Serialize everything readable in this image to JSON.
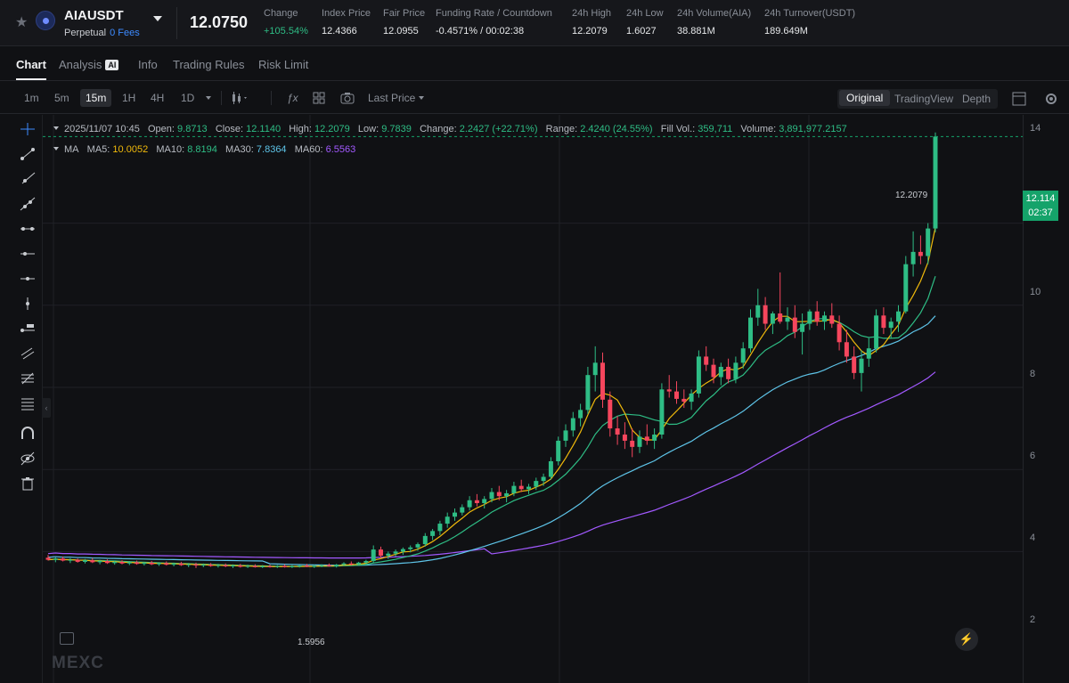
{
  "header": {
    "symbol": "AIAUSDT",
    "contract_type": "Perpetual",
    "fees": "0 Fees",
    "last_price": "12.0750",
    "stats": [
      {
        "label": "Change",
        "value": "+105.54%",
        "positive": true
      },
      {
        "label": "Index Price",
        "value": "12.4366"
      },
      {
        "label": "Fair Price",
        "value": "12.0955"
      },
      {
        "label": "Funding Rate / Countdown",
        "value": "-0.4571% / 00:02:38"
      },
      {
        "label": "24h High",
        "value": "12.2079"
      },
      {
        "label": "24h Low",
        "value": "1.6027"
      },
      {
        "label": "24h Volume(AIA)",
        "value": "38.881M"
      },
      {
        "label": "24h Turnover(USDT)",
        "value": "189.649M"
      }
    ]
  },
  "tabs": [
    {
      "label": "Chart",
      "active": true
    },
    {
      "label": "Analysis",
      "badge": "AI"
    },
    {
      "label": "Info"
    },
    {
      "label": "Trading Rules"
    },
    {
      "label": "Risk Limit"
    }
  ],
  "toolbar": {
    "intervals": [
      "1m",
      "5m",
      "15m",
      "1H",
      "4H",
      "1D"
    ],
    "selected_interval": "15m",
    "price_type": "Last Price",
    "views": [
      "Original",
      "TradingView",
      "Depth"
    ],
    "active_view": "Original"
  },
  "legend": {
    "datetime": "2025/11/07 10:45",
    "open_label": "Open:",
    "open": "9.8713",
    "close_label": "Close:",
    "close": "12.1140",
    "high_label": "High:",
    "high": "12.2079",
    "low_label": "Low:",
    "low": "9.7839",
    "change_label": "Change:",
    "change": "2.2427 (+22.71%)",
    "range_label": "Range:",
    "range": "2.4240 (24.55%)",
    "fillvol_label": "Fill Vol.:",
    "fillvol": "359,711",
    "volume_label": "Volume:",
    "volume": "3,891,977.2157"
  },
  "ma": {
    "label": "MA",
    "ma5_label": "MA5:",
    "ma5": "10.0052",
    "ma10_label": "MA10:",
    "ma10": "8.8194",
    "ma30_label": "MA30:",
    "ma30": "7.8364",
    "ma60_label": "MA60:",
    "ma60": "6.5563"
  },
  "colors": {
    "up": "#2ebd85",
    "down": "#f6465d",
    "ma5": "#f0b90b",
    "ma10": "#2ebd85",
    "ma30": "#5ec4e8",
    "ma60": "#a259ff"
  },
  "price_axis": {
    "ticks": [
      "14",
      "10",
      "8",
      "6",
      "4",
      "2"
    ]
  },
  "current_price_tag": {
    "price": "12.114",
    "countdown": "02:37"
  },
  "high_marker": "12.2079",
  "low_marker": "1.5956",
  "watermark": "MEXC",
  "chart_data": {
    "type": "candlestick",
    "interval": "15m",
    "ylim": [
      1.2,
      14.5
    ],
    "x": [
      "2025/11/07 10:45"
    ],
    "series": [
      {
        "name": "MA5",
        "values": [
          10.0052
        ]
      },
      {
        "name": "MA10",
        "values": [
          8.8194
        ]
      },
      {
        "name": "MA30",
        "values": [
          7.8364
        ]
      },
      {
        "name": "MA60",
        "values": [
          6.5563
        ]
      }
    ],
    "candles": [
      {
        "o": 1.85,
        "h": 1.92,
        "l": 1.78,
        "c": 1.8
      },
      {
        "o": 1.8,
        "h": 1.86,
        "l": 1.74,
        "c": 1.83
      },
      {
        "o": 1.83,
        "h": 1.88,
        "l": 1.76,
        "c": 1.78
      },
      {
        "o": 1.78,
        "h": 1.84,
        "l": 1.72,
        "c": 1.8
      },
      {
        "o": 1.8,
        "h": 1.83,
        "l": 1.73,
        "c": 1.75
      },
      {
        "o": 1.75,
        "h": 1.82,
        "l": 1.71,
        "c": 1.79
      },
      {
        "o": 1.79,
        "h": 1.84,
        "l": 1.72,
        "c": 1.74
      },
      {
        "o": 1.74,
        "h": 1.8,
        "l": 1.69,
        "c": 1.77
      },
      {
        "o": 1.77,
        "h": 1.81,
        "l": 1.7,
        "c": 1.72
      },
      {
        "o": 1.72,
        "h": 1.78,
        "l": 1.68,
        "c": 1.75
      },
      {
        "o": 1.75,
        "h": 1.79,
        "l": 1.69,
        "c": 1.71
      },
      {
        "o": 1.71,
        "h": 1.77,
        "l": 1.67,
        "c": 1.74
      },
      {
        "o": 1.74,
        "h": 1.78,
        "l": 1.68,
        "c": 1.7
      },
      {
        "o": 1.7,
        "h": 1.75,
        "l": 1.66,
        "c": 1.73
      },
      {
        "o": 1.73,
        "h": 1.77,
        "l": 1.67,
        "c": 1.69
      },
      {
        "o": 1.69,
        "h": 1.74,
        "l": 1.65,
        "c": 1.72
      },
      {
        "o": 1.72,
        "h": 1.76,
        "l": 1.66,
        "c": 1.68
      },
      {
        "o": 1.68,
        "h": 1.73,
        "l": 1.64,
        "c": 1.71
      },
      {
        "o": 1.71,
        "h": 1.75,
        "l": 1.65,
        "c": 1.67
      },
      {
        "o": 1.67,
        "h": 1.72,
        "l": 1.62,
        "c": 1.69
      },
      {
        "o": 1.69,
        "h": 1.73,
        "l": 1.6,
        "c": 1.66
      },
      {
        "o": 1.66,
        "h": 1.71,
        "l": 1.62,
        "c": 1.68
      },
      {
        "o": 1.68,
        "h": 1.72,
        "l": 1.63,
        "c": 1.65
      },
      {
        "o": 1.65,
        "h": 1.7,
        "l": 1.61,
        "c": 1.67
      },
      {
        "o": 1.67,
        "h": 1.71,
        "l": 1.62,
        "c": 1.64
      },
      {
        "o": 1.64,
        "h": 1.69,
        "l": 1.6,
        "c": 1.66
      },
      {
        "o": 1.66,
        "h": 1.7,
        "l": 1.61,
        "c": 1.63
      },
      {
        "o": 1.63,
        "h": 1.68,
        "l": 1.6,
        "c": 1.65
      },
      {
        "o": 1.65,
        "h": 1.69,
        "l": 1.61,
        "c": 1.62
      },
      {
        "o": 1.62,
        "h": 1.67,
        "l": 1.6,
        "c": 1.64
      },
      {
        "o": 1.64,
        "h": 1.68,
        "l": 1.61,
        "c": 1.63
      },
      {
        "o": 1.63,
        "h": 1.67,
        "l": 1.6,
        "c": 1.65
      },
      {
        "o": 1.65,
        "h": 1.69,
        "l": 1.61,
        "c": 1.62
      },
      {
        "o": 1.62,
        "h": 1.67,
        "l": 1.6,
        "c": 1.64
      },
      {
        "o": 1.64,
        "h": 1.68,
        "l": 1.61,
        "c": 1.66
      },
      {
        "o": 1.66,
        "h": 1.7,
        "l": 1.62,
        "c": 1.63
      },
      {
        "o": 1.63,
        "h": 1.68,
        "l": 1.6,
        "c": 1.65
      },
      {
        "o": 1.65,
        "h": 1.69,
        "l": 1.62,
        "c": 1.67
      },
      {
        "o": 1.67,
        "h": 1.71,
        "l": 1.63,
        "c": 1.64
      },
      {
        "o": 1.64,
        "h": 1.7,
        "l": 1.61,
        "c": 1.68
      },
      {
        "o": 1.68,
        "h": 1.74,
        "l": 1.65,
        "c": 1.71
      },
      {
        "o": 1.71,
        "h": 1.76,
        "l": 1.66,
        "c": 1.69
      },
      {
        "o": 1.69,
        "h": 1.75,
        "l": 1.65,
        "c": 1.73
      },
      {
        "o": 1.73,
        "h": 1.8,
        "l": 1.68,
        "c": 1.77
      },
      {
        "o": 1.77,
        "h": 2.15,
        "l": 1.72,
        "c": 2.05
      },
      {
        "o": 2.05,
        "h": 2.12,
        "l": 1.85,
        "c": 1.9
      },
      {
        "o": 1.9,
        "h": 2.0,
        "l": 1.82,
        "c": 1.95
      },
      {
        "o": 1.95,
        "h": 2.05,
        "l": 1.88,
        "c": 2.0
      },
      {
        "o": 2.0,
        "h": 2.1,
        "l": 1.92,
        "c": 2.06
      },
      {
        "o": 2.06,
        "h": 2.15,
        "l": 1.98,
        "c": 2.1
      },
      {
        "o": 2.1,
        "h": 2.22,
        "l": 2.02,
        "c": 2.18
      },
      {
        "o": 2.18,
        "h": 2.45,
        "l": 2.12,
        "c": 2.38
      },
      {
        "o": 2.38,
        "h": 2.55,
        "l": 2.28,
        "c": 2.5
      },
      {
        "o": 2.5,
        "h": 2.75,
        "l": 2.4,
        "c": 2.68
      },
      {
        "o": 2.68,
        "h": 2.95,
        "l": 2.58,
        "c": 2.85
      },
      {
        "o": 2.85,
        "h": 3.05,
        "l": 2.75,
        "c": 2.95
      },
      {
        "o": 2.95,
        "h": 3.15,
        "l": 2.88,
        "c": 3.08
      },
      {
        "o": 3.08,
        "h": 3.35,
        "l": 3.0,
        "c": 3.25
      },
      {
        "o": 3.25,
        "h": 3.4,
        "l": 3.1,
        "c": 3.18
      },
      {
        "o": 3.18,
        "h": 3.35,
        "l": 3.05,
        "c": 3.28
      },
      {
        "o": 3.28,
        "h": 3.55,
        "l": 3.2,
        "c": 3.45
      },
      {
        "o": 3.45,
        "h": 3.6,
        "l": 3.25,
        "c": 3.35
      },
      {
        "o": 3.35,
        "h": 3.5,
        "l": 3.2,
        "c": 3.42
      },
      {
        "o": 3.42,
        "h": 3.7,
        "l": 3.35,
        "c": 3.6
      },
      {
        "o": 3.6,
        "h": 3.75,
        "l": 3.45,
        "c": 3.52
      },
      {
        "o": 3.52,
        "h": 3.65,
        "l": 3.4,
        "c": 3.58
      },
      {
        "o": 3.58,
        "h": 3.8,
        "l": 3.5,
        "c": 3.72
      },
      {
        "o": 3.72,
        "h": 3.9,
        "l": 3.6,
        "c": 3.82
      },
      {
        "o": 3.82,
        "h": 4.3,
        "l": 3.75,
        "c": 4.2
      },
      {
        "o": 4.2,
        "h": 4.8,
        "l": 4.1,
        "c": 4.7
      },
      {
        "o": 4.7,
        "h": 5.1,
        "l": 4.55,
        "c": 4.95
      },
      {
        "o": 4.95,
        "h": 5.4,
        "l": 4.8,
        "c": 5.25
      },
      {
        "o": 5.25,
        "h": 5.6,
        "l": 5.05,
        "c": 5.45
      },
      {
        "o": 5.45,
        "h": 6.5,
        "l": 5.35,
        "c": 6.3
      },
      {
        "o": 6.3,
        "h": 7.0,
        "l": 5.9,
        "c": 6.6
      },
      {
        "o": 6.6,
        "h": 6.85,
        "l": 5.5,
        "c": 5.7
      },
      {
        "o": 5.7,
        "h": 5.9,
        "l": 4.8,
        "c": 5.0
      },
      {
        "o": 5.0,
        "h": 5.3,
        "l": 4.6,
        "c": 4.85
      },
      {
        "o": 4.85,
        "h": 5.15,
        "l": 4.5,
        "c": 4.7
      },
      {
        "o": 4.7,
        "h": 5.0,
        "l": 4.3,
        "c": 4.55
      },
      {
        "o": 4.55,
        "h": 4.95,
        "l": 4.4,
        "c": 4.8
      },
      {
        "o": 4.8,
        "h": 5.1,
        "l": 4.6,
        "c": 4.7
      },
      {
        "o": 4.7,
        "h": 5.0,
        "l": 4.5,
        "c": 4.85
      },
      {
        "o": 4.85,
        "h": 6.1,
        "l": 4.75,
        "c": 5.95
      },
      {
        "o": 5.95,
        "h": 6.3,
        "l": 5.75,
        "c": 5.9
      },
      {
        "o": 5.9,
        "h": 6.15,
        "l": 5.6,
        "c": 5.72
      },
      {
        "o": 5.72,
        "h": 5.95,
        "l": 5.5,
        "c": 5.65
      },
      {
        "o": 5.65,
        "h": 5.95,
        "l": 5.45,
        "c": 5.85
      },
      {
        "o": 5.85,
        "h": 6.9,
        "l": 5.75,
        "c": 6.75
      },
      {
        "o": 6.75,
        "h": 7.0,
        "l": 6.4,
        "c": 6.55
      },
      {
        "o": 6.55,
        "h": 6.7,
        "l": 6.1,
        "c": 6.25
      },
      {
        "o": 6.25,
        "h": 6.6,
        "l": 6.05,
        "c": 6.5
      },
      {
        "o": 6.5,
        "h": 6.7,
        "l": 6.1,
        "c": 6.2
      },
      {
        "o": 6.2,
        "h": 6.75,
        "l": 6.1,
        "c": 6.6
      },
      {
        "o": 6.6,
        "h": 7.1,
        "l": 6.45,
        "c": 6.95
      },
      {
        "o": 6.95,
        "h": 7.9,
        "l": 6.85,
        "c": 7.7
      },
      {
        "o": 7.7,
        "h": 8.4,
        "l": 7.5,
        "c": 8.0
      },
      {
        "o": 8.0,
        "h": 8.2,
        "l": 7.4,
        "c": 7.55
      },
      {
        "o": 7.55,
        "h": 7.85,
        "l": 7.3,
        "c": 7.8
      },
      {
        "o": 7.8,
        "h": 8.8,
        "l": 7.55,
        "c": 7.6
      },
      {
        "o": 7.6,
        "h": 7.95,
        "l": 7.4,
        "c": 7.7
      },
      {
        "o": 7.7,
        "h": 8.0,
        "l": 7.2,
        "c": 7.35
      },
      {
        "o": 7.35,
        "h": 7.8,
        "l": 6.8,
        "c": 7.55
      },
      {
        "o": 7.55,
        "h": 7.9,
        "l": 7.4,
        "c": 7.85
      },
      {
        "o": 7.85,
        "h": 8.1,
        "l": 7.5,
        "c": 7.6
      },
      {
        "o": 7.6,
        "h": 7.85,
        "l": 7.4,
        "c": 7.75
      },
      {
        "o": 7.75,
        "h": 8.05,
        "l": 7.45,
        "c": 7.55
      },
      {
        "o": 7.55,
        "h": 7.75,
        "l": 6.9,
        "c": 7.1
      },
      {
        "o": 7.1,
        "h": 7.4,
        "l": 6.6,
        "c": 6.75
      },
      {
        "o": 6.75,
        "h": 7.0,
        "l": 6.2,
        "c": 6.35
      },
      {
        "o": 6.35,
        "h": 6.9,
        "l": 5.9,
        "c": 6.7
      },
      {
        "o": 6.7,
        "h": 7.2,
        "l": 6.5,
        "c": 6.95
      },
      {
        "o": 6.95,
        "h": 7.9,
        "l": 6.85,
        "c": 7.75
      },
      {
        "o": 7.75,
        "h": 7.95,
        "l": 7.3,
        "c": 7.45
      },
      {
        "o": 7.45,
        "h": 7.7,
        "l": 7.2,
        "c": 7.6
      },
      {
        "o": 7.6,
        "h": 8.0,
        "l": 7.35,
        "c": 7.85
      },
      {
        "o": 7.85,
        "h": 9.2,
        "l": 7.8,
        "c": 9.0
      },
      {
        "o": 9.0,
        "h": 9.8,
        "l": 8.7,
        "c": 9.3
      },
      {
        "o": 9.3,
        "h": 9.7,
        "l": 9.0,
        "c": 9.2
      },
      {
        "o": 9.2,
        "h": 10.0,
        "l": 9.0,
        "c": 9.87
      },
      {
        "o": 9.87,
        "h": 12.21,
        "l": 9.78,
        "c": 12.11
      }
    ]
  }
}
